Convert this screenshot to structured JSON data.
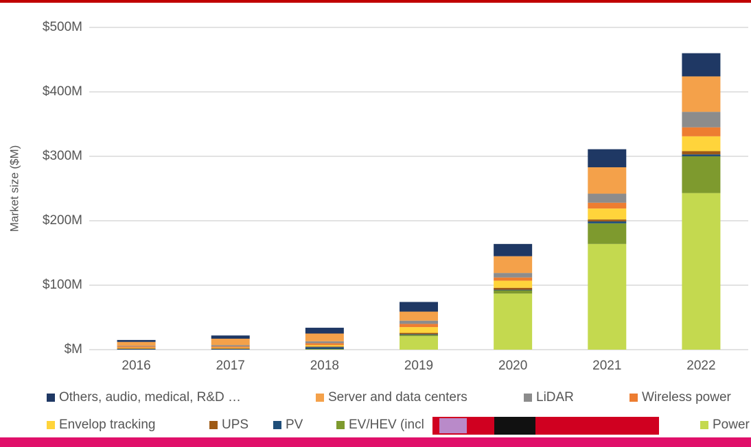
{
  "chart_data": {
    "type": "stacked_bar",
    "ylabel": "Market size ($M)",
    "categories": [
      "2016",
      "2017",
      "2018",
      "2019",
      "2020",
      "2021",
      "2022"
    ],
    "ylim": [
      0,
      500
    ],
    "yticks": [
      {
        "value": 0,
        "label": "$M"
      },
      {
        "value": 100,
        "label": "$100M"
      },
      {
        "value": 200,
        "label": "$200M"
      },
      {
        "value": 300,
        "label": "$300M"
      },
      {
        "value": 400,
        "label": "$400M"
      },
      {
        "value": 500,
        "label": "$500M"
      }
    ],
    "grid": true,
    "series": [
      {
        "name": "Others, audio, medical, R&D …",
        "color": "#1f3864",
        "values": [
          3,
          5,
          9,
          15,
          19,
          28,
          36
        ]
      },
      {
        "name": "Server and data centers",
        "color": "#f4a14a",
        "values": [
          6,
          10,
          12,
          14,
          26,
          41,
          55
        ]
      },
      {
        "name": "LiDAR",
        "color": "#8c8c8c",
        "values": [
          1,
          2,
          3,
          5,
          7,
          14,
          24
        ]
      },
      {
        "name": "Wireless power",
        "color": "#ed7d31",
        "values": [
          2,
          2,
          3,
          5,
          5,
          9,
          14
        ]
      },
      {
        "name": "Envelop tracking",
        "color": "#ffd43b",
        "values": [
          1,
          1,
          2,
          9,
          11,
          17,
          23
        ]
      },
      {
        "name": "UPS",
        "color": "#9e5a16",
        "values": [
          1,
          1,
          1,
          2,
          3,
          3,
          5
        ]
      },
      {
        "name": "PV",
        "color": "#1f4e79",
        "values": [
          1,
          1,
          3,
          1,
          1,
          3,
          3
        ]
      },
      {
        "name": "EV/HEV (incl",
        "color": "#7e9a2e",
        "values": [
          0,
          0,
          1,
          2,
          5,
          32,
          57
        ]
      },
      {
        "name": "Power supply",
        "color": "#c4d94f",
        "values": [
          0,
          0,
          0,
          21,
          87,
          164,
          243
        ]
      }
    ]
  }
}
